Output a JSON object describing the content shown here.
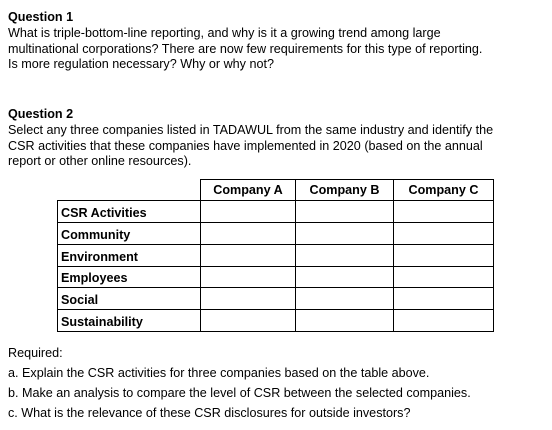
{
  "question1": {
    "heading": "Question 1",
    "lines": [
      "What is triple-bottom-line reporting, and why is it a growing trend among large",
      "multinational corporations? There are now few requirements for this type of reporting.",
      "Is more regulation necessary? Why or why not?"
    ]
  },
  "question2": {
    "heading": "Question 2",
    "lines": [
      "Select any three companies listed in TADAWUL from the same industry and identify the",
      "CSR activities that these companies have implemented in 2020 (based on the annual",
      "report or other online resources)."
    ]
  },
  "table": {
    "companies": [
      "Company A",
      "Company B",
      "Company C"
    ],
    "rows": [
      "CSR Activities",
      "Community",
      "Environment",
      "Employees",
      "Social",
      "Sustainability"
    ]
  },
  "required": {
    "label": "Required:",
    "items": [
      "a. Explain the CSR activities for three companies based on the table above.",
      "b. Make an analysis to compare the level of CSR between the selected companies.",
      "c. What is the relevance of these CSR disclosures for outside investors?"
    ]
  }
}
